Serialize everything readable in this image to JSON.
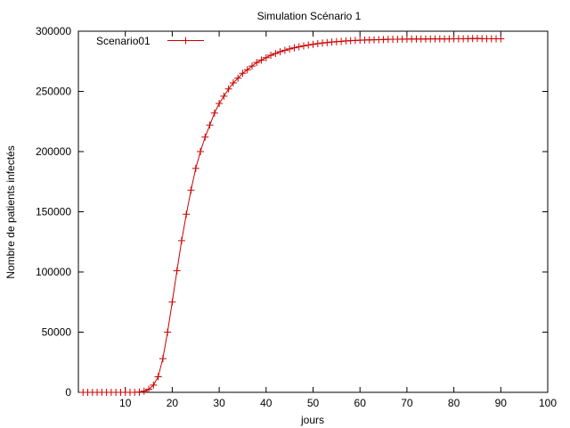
{
  "chart_data": {
    "type": "line",
    "title": "Simulation Scénario 1",
    "xlabel": "jours",
    "ylabel": "Nombre de patients infectés",
    "xlim": [
      0,
      100
    ],
    "ylim": [
      0,
      300000
    ],
    "xticks": [
      10,
      20,
      30,
      40,
      50,
      60,
      70,
      80,
      90,
      100
    ],
    "yticks": [
      0,
      50000,
      100000,
      150000,
      200000,
      250000,
      300000
    ],
    "grid": false,
    "legend_position": "top-left",
    "series": [
      {
        "name": "Scenario01",
        "color": "#cc0000",
        "marker": "plus",
        "x": [
          1,
          2,
          3,
          4,
          5,
          6,
          7,
          8,
          9,
          10,
          11,
          12,
          13,
          14,
          15,
          16,
          17,
          18,
          19,
          20,
          21,
          22,
          23,
          24,
          25,
          26,
          27,
          28,
          29,
          30,
          31,
          32,
          33,
          34,
          35,
          36,
          37,
          38,
          39,
          40,
          41,
          42,
          43,
          44,
          45,
          46,
          47,
          48,
          49,
          50,
          51,
          52,
          53,
          54,
          55,
          56,
          57,
          58,
          59,
          60,
          61,
          62,
          63,
          64,
          65,
          66,
          67,
          68,
          69,
          70,
          71,
          72,
          73,
          74,
          75,
          76,
          77,
          78,
          79,
          80,
          81,
          82,
          83,
          84,
          85,
          86,
          87,
          88,
          89,
          90
        ],
        "y": [
          0,
          0,
          0,
          0,
          0,
          0,
          0,
          0,
          0,
          0,
          0,
          0,
          200,
          1000,
          2500,
          6000,
          13000,
          28000,
          50000,
          75000,
          101000,
          126000,
          148000,
          168000,
          186000,
          200000,
          212000,
          222000,
          232000,
          240000,
          246000,
          252000,
          257000,
          261000,
          265000,
          268000,
          271000,
          274000,
          276000,
          278000,
          280000,
          281500,
          283000,
          284200,
          285300,
          286200,
          287000,
          287800,
          288500,
          289100,
          289700,
          290200,
          290600,
          291000,
          291300,
          291600,
          291900,
          292100,
          292300,
          292500,
          292700,
          292800,
          292900,
          293000,
          293100,
          293200,
          293300,
          293300,
          293400,
          293400,
          293500,
          293500,
          293500,
          293500,
          293600,
          293600,
          293600,
          293600,
          293600,
          293700,
          293700,
          293700,
          293800,
          293900,
          294000,
          293800,
          293700,
          293700,
          293700,
          293700
        ]
      }
    ]
  }
}
